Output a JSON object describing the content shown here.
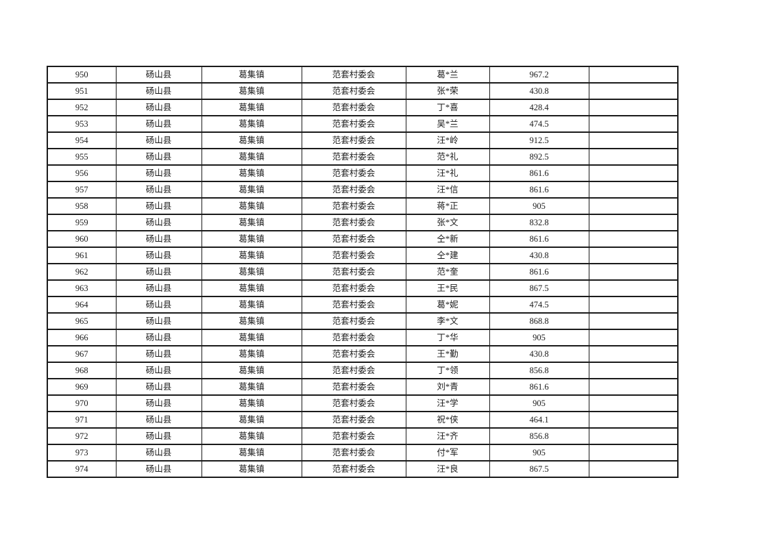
{
  "colors": {
    "background": "#ffffff",
    "border": "#1a1a1a",
    "text": "#1b1b1b"
  },
  "table": {
    "columns": [
      {
        "key": "index"
      },
      {
        "key": "county"
      },
      {
        "key": "town"
      },
      {
        "key": "village"
      },
      {
        "key": "name"
      },
      {
        "key": "amount"
      },
      {
        "key": "empty"
      }
    ],
    "rows": [
      {
        "index": "950",
        "county": "砀山县",
        "town": "葛集镇",
        "village": "范套村委会",
        "name": "葛*兰",
        "amount": "967.2",
        "empty": ""
      },
      {
        "index": "951",
        "county": "砀山县",
        "town": "葛集镇",
        "village": "范套村委会",
        "name": "张*荣",
        "amount": "430.8",
        "empty": ""
      },
      {
        "index": "952",
        "county": "砀山县",
        "town": "葛集镇",
        "village": "范套村委会",
        "name": "丁*喜",
        "amount": "428.4",
        "empty": ""
      },
      {
        "index": "953",
        "county": "砀山县",
        "town": "葛集镇",
        "village": "范套村委会",
        "name": "吴*兰",
        "amount": "474.5",
        "empty": ""
      },
      {
        "index": "954",
        "county": "砀山县",
        "town": "葛集镇",
        "village": "范套村委会",
        "name": "汪*岭",
        "amount": "912.5",
        "empty": ""
      },
      {
        "index": "955",
        "county": "砀山县",
        "town": "葛集镇",
        "village": "范套村委会",
        "name": "范*礼",
        "amount": "892.5",
        "empty": ""
      },
      {
        "index": "956",
        "county": "砀山县",
        "town": "葛集镇",
        "village": "范套村委会",
        "name": "汪*礼",
        "amount": "861.6",
        "empty": ""
      },
      {
        "index": "957",
        "county": "砀山县",
        "town": "葛集镇",
        "village": "范套村委会",
        "name": "汪*信",
        "amount": "861.6",
        "empty": ""
      },
      {
        "index": "958",
        "county": "砀山县",
        "town": "葛集镇",
        "village": "范套村委会",
        "name": "蒋*正",
        "amount": "905",
        "empty": ""
      },
      {
        "index": "959",
        "county": "砀山县",
        "town": "葛集镇",
        "village": "范套村委会",
        "name": "张*文",
        "amount": "832.8",
        "empty": ""
      },
      {
        "index": "960",
        "county": "砀山县",
        "town": "葛集镇",
        "village": "范套村委会",
        "name": "仝*新",
        "amount": "861.6",
        "empty": ""
      },
      {
        "index": "961",
        "county": "砀山县",
        "town": "葛集镇",
        "village": "范套村委会",
        "name": "仝*建",
        "amount": "430.8",
        "empty": ""
      },
      {
        "index": "962",
        "county": "砀山县",
        "town": "葛集镇",
        "village": "范套村委会",
        "name": "范*奎",
        "amount": "861.6",
        "empty": ""
      },
      {
        "index": "963",
        "county": "砀山县",
        "town": "葛集镇",
        "village": "范套村委会",
        "name": "王*民",
        "amount": "867.5",
        "empty": ""
      },
      {
        "index": "964",
        "county": "砀山县",
        "town": "葛集镇",
        "village": "范套村委会",
        "name": "葛*妮",
        "amount": "474.5",
        "empty": ""
      },
      {
        "index": "965",
        "county": "砀山县",
        "town": "葛集镇",
        "village": "范套村委会",
        "name": "李*文",
        "amount": "868.8",
        "empty": ""
      },
      {
        "index": "966",
        "county": "砀山县",
        "town": "葛集镇",
        "village": "范套村委会",
        "name": "丁*华",
        "amount": "905",
        "empty": ""
      },
      {
        "index": "967",
        "county": "砀山县",
        "town": "葛集镇",
        "village": "范套村委会",
        "name": "王*勤",
        "amount": "430.8",
        "empty": ""
      },
      {
        "index": "968",
        "county": "砀山县",
        "town": "葛集镇",
        "village": "范套村委会",
        "name": "丁*领",
        "amount": "856.8",
        "empty": ""
      },
      {
        "index": "969",
        "county": "砀山县",
        "town": "葛集镇",
        "village": "范套村委会",
        "name": "刘*青",
        "amount": "861.6",
        "empty": ""
      },
      {
        "index": "970",
        "county": "砀山县",
        "town": "葛集镇",
        "village": "范套村委会",
        "name": "汪*学",
        "amount": "905",
        "empty": ""
      },
      {
        "index": "971",
        "county": "砀山县",
        "town": "葛集镇",
        "village": "范套村委会",
        "name": "祝*侠",
        "amount": "464.1",
        "empty": ""
      },
      {
        "index": "972",
        "county": "砀山县",
        "town": "葛集镇",
        "village": "范套村委会",
        "name": "汪*齐",
        "amount": "856.8",
        "empty": ""
      },
      {
        "index": "973",
        "county": "砀山县",
        "town": "葛集镇",
        "village": "范套村委会",
        "name": "付*军",
        "amount": "905",
        "empty": ""
      },
      {
        "index": "974",
        "county": "砀山县",
        "town": "葛集镇",
        "village": "范套村委会",
        "name": "汪*良",
        "amount": "867.5",
        "empty": ""
      }
    ]
  }
}
